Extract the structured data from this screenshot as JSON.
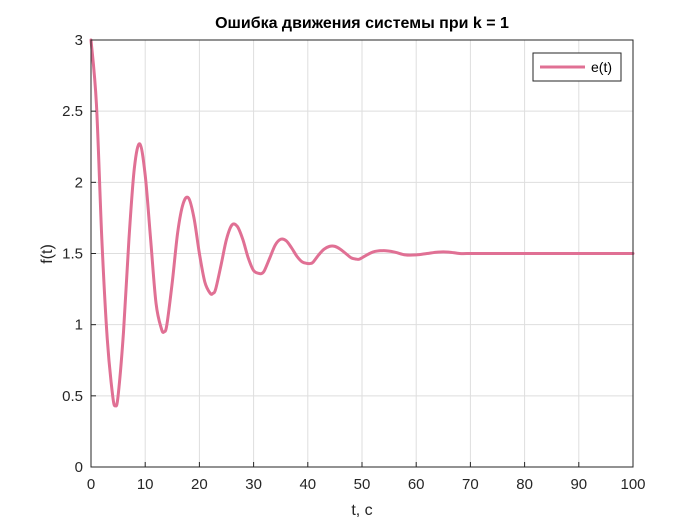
{
  "chart_data": {
    "type": "line",
    "title": "Ошибка движения системы при k = 1",
    "xlabel": "t, c",
    "ylabel": "f(t)",
    "xlim": [
      0,
      100
    ],
    "ylim": [
      0,
      3
    ],
    "x_ticks": [
      "0",
      "10",
      "20",
      "30",
      "40",
      "50",
      "60",
      "70",
      "80",
      "90",
      "100"
    ],
    "y_ticks": [
      "0",
      "0.5",
      "1",
      "1.5",
      "2",
      "2.5",
      "3"
    ],
    "grid": true,
    "legend_position": "top-right",
    "series": [
      {
        "name": "e(t)",
        "color": "#e07094",
        "x": [
          0,
          1,
          2,
          3,
          4,
          4.5,
          5,
          6,
          7,
          8,
          9,
          10,
          11,
          12,
          13,
          13.5,
          14,
          15,
          16,
          17,
          18,
          19,
          20,
          21,
          22,
          22.5,
          23,
          24,
          25,
          26,
          27,
          28,
          29,
          30,
          31,
          31.5,
          32,
          33,
          34,
          35,
          36,
          37,
          38,
          39,
          40,
          40.5,
          41,
          42,
          43,
          44,
          45,
          46,
          47,
          48,
          49,
          49.5,
          50,
          52,
          54,
          56,
          58,
          60,
          62,
          64,
          66,
          68,
          70,
          72,
          74,
          76,
          78,
          80,
          85,
          90,
          95,
          100
        ],
        "y": [
          3.0,
          2.55,
          1.6,
          0.9,
          0.5,
          0.43,
          0.5,
          0.95,
          1.6,
          2.1,
          2.27,
          2.05,
          1.6,
          1.15,
          0.97,
          0.95,
          1.0,
          1.3,
          1.65,
          1.85,
          1.89,
          1.75,
          1.5,
          1.3,
          1.22,
          1.22,
          1.25,
          1.42,
          1.6,
          1.7,
          1.69,
          1.6,
          1.47,
          1.38,
          1.36,
          1.36,
          1.38,
          1.47,
          1.56,
          1.6,
          1.59,
          1.54,
          1.48,
          1.44,
          1.43,
          1.43,
          1.44,
          1.49,
          1.53,
          1.55,
          1.55,
          1.53,
          1.5,
          1.47,
          1.46,
          1.46,
          1.47,
          1.51,
          1.52,
          1.51,
          1.49,
          1.49,
          1.5,
          1.51,
          1.51,
          1.5,
          1.5,
          1.5,
          1.5,
          1.5,
          1.5,
          1.5,
          1.5,
          1.5,
          1.5,
          1.5
        ]
      }
    ]
  }
}
